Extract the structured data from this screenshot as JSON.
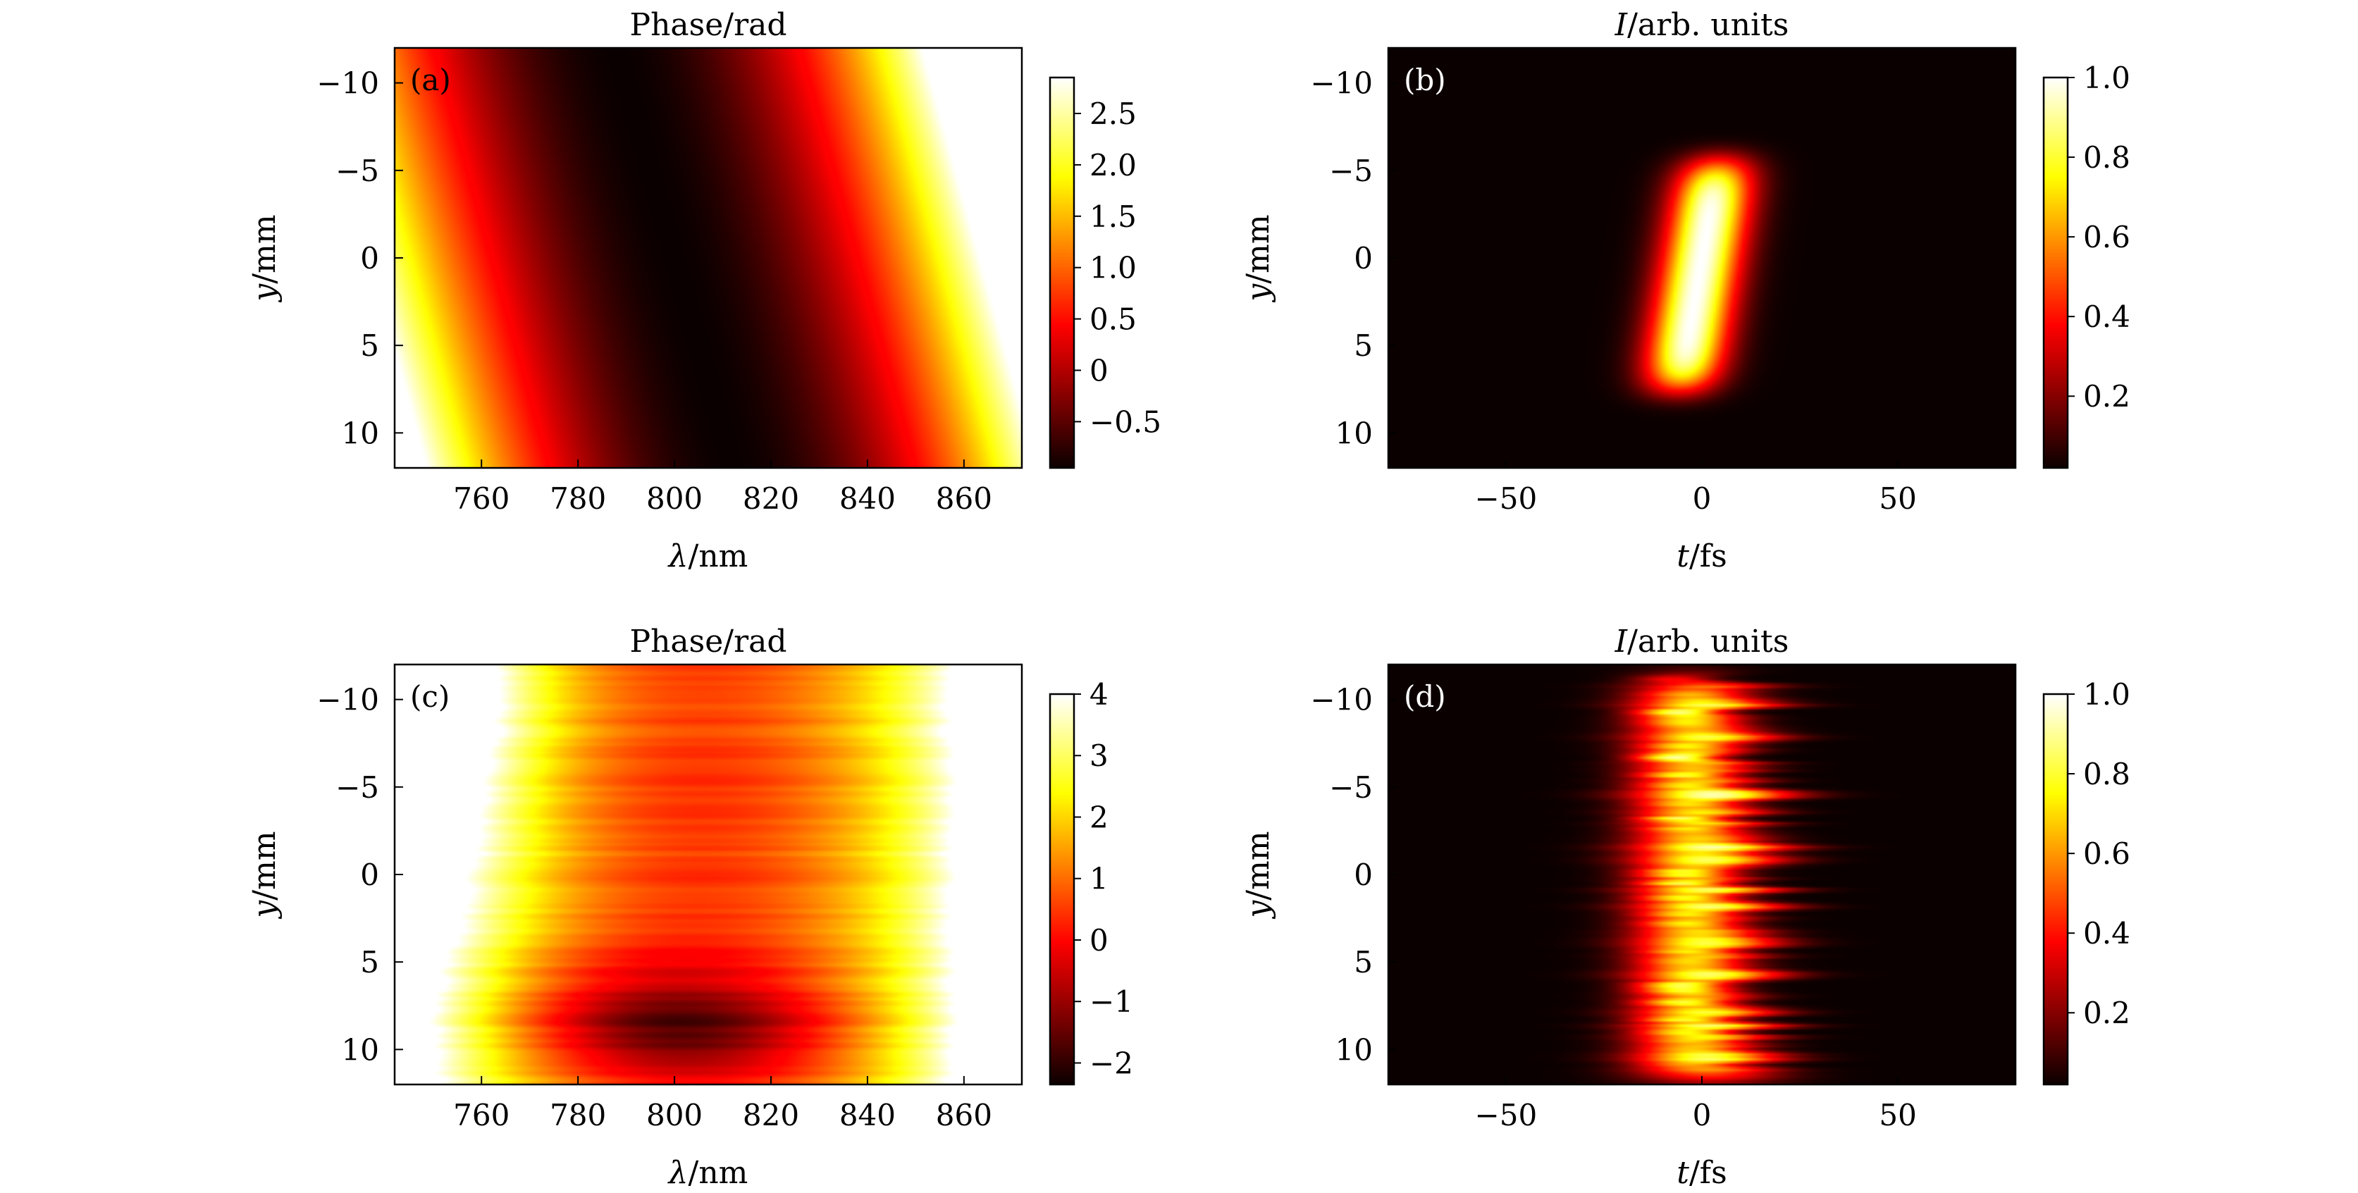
{
  "chart_data": [
    {
      "type": "heatmap",
      "panel_label": "(a)",
      "title": "Phase/rad",
      "xlabel": {
        "symbol": "λ",
        "rest": "/nm"
      },
      "ylabel": {
        "symbol": "y",
        "rest": "/mm"
      },
      "xlim": [
        742,
        872
      ],
      "ylim": [
        12,
        -12
      ],
      "xticks": [
        760,
        780,
        800,
        820,
        840,
        860
      ],
      "xtick_labels": [
        "760",
        "780",
        "800",
        "820",
        "840",
        "860"
      ],
      "yticks": [
        -10,
        -5,
        0,
        5,
        10
      ],
      "ytick_labels": [
        "−10",
        "−5",
        "0",
        "5",
        "10"
      ],
      "colormap": "hot",
      "colorbar": {
        "range": [
          -0.95,
          2.85
        ],
        "ticks": [
          -0.5,
          0,
          0.5,
          1.0,
          1.5,
          2.0,
          2.5
        ],
        "tick_labels": [
          "−0.5",
          "0",
          "0.5",
          "1.0",
          "1.5",
          "2.0",
          "2.5"
        ]
      },
      "field": {
        "kind": "parabolic_phase_tilted",
        "center_x": 800,
        "center_slope_per_mm": 1.0,
        "curvature": 0.00095,
        "min_value": -0.95,
        "noise": 0
      }
    },
    {
      "type": "heatmap",
      "panel_label": "(b)",
      "title": {
        "symbol": "I",
        "rest": "/arb. units"
      },
      "xlabel": {
        "symbol": "t",
        "rest": "/fs"
      },
      "ylabel": {
        "symbol": "y",
        "rest": "/mm"
      },
      "xlim": [
        -80,
        80
      ],
      "ylim": [
        12,
        -12
      ],
      "xticks": [
        -50,
        0,
        50
      ],
      "xtick_labels": [
        "−50",
        "0",
        "50"
      ],
      "yticks": [
        -10,
        -5,
        0,
        5,
        10
      ],
      "ytick_labels": [
        "−10",
        "−5",
        "0",
        "5",
        "10"
      ],
      "colormap": "hot",
      "colorbar": {
        "range": [
          0.02,
          1.0
        ],
        "ticks": [
          0.2,
          0.4,
          0.6,
          0.8,
          1.0
        ],
        "tick_labels": [
          "0.2",
          "0.4",
          "0.6",
          "0.8",
          "1.0"
        ]
      },
      "field": {
        "kind": "tilted_pulse",
        "center_t": 0,
        "tilt_fs_per_mm": 0.75,
        "width_fs": 10,
        "y_center": 1,
        "y_halfwidth": 6.6,
        "noise": 0
      }
    },
    {
      "type": "heatmap",
      "panel_label": "(c)",
      "title": "Phase/rad",
      "xlabel": {
        "symbol": "λ",
        "rest": "/nm"
      },
      "ylabel": {
        "symbol": "y",
        "rest": "/mm"
      },
      "xlim": [
        742,
        872
      ],
      "ylim": [
        12,
        -12
      ],
      "xticks": [
        760,
        780,
        800,
        820,
        840,
        860
      ],
      "xtick_labels": [
        "760",
        "780",
        "800",
        "820",
        "840",
        "860"
      ],
      "yticks": [
        -10,
        -5,
        0,
        5,
        10
      ],
      "ytick_labels": [
        "−10",
        "−5",
        "0",
        "5",
        "10"
      ],
      "colormap": "hot",
      "colorbar": {
        "range": [
          -2.35,
          4.0
        ],
        "ticks": [
          -2,
          -1,
          0,
          1,
          2,
          3,
          4
        ],
        "tick_labels": [
          "−2",
          "−1",
          "0",
          "1",
          "2",
          "3",
          "4"
        ]
      },
      "field": {
        "kind": "measured_phase",
        "noise": 1
      }
    },
    {
      "type": "heatmap",
      "panel_label": "(d)",
      "title": {
        "symbol": "I",
        "rest": "/arb. units"
      },
      "xlabel": {
        "symbol": "t",
        "rest": "/fs"
      },
      "ylabel": {
        "symbol": "y",
        "rest": "/mm"
      },
      "xlim": [
        -80,
        80
      ],
      "ylim": [
        12,
        -12
      ],
      "xticks": [
        -50,
        0,
        50
      ],
      "xtick_labels": [
        "−50",
        "0",
        "50"
      ],
      "yticks": [
        -10,
        -5,
        0,
        5,
        10
      ],
      "ytick_labels": [
        "−10",
        "−5",
        "0",
        "5",
        "10"
      ],
      "colormap": "hot",
      "colorbar": {
        "range": [
          0.02,
          1.0
        ],
        "ticks": [
          0.2,
          0.4,
          0.6,
          0.8,
          1.0
        ],
        "tick_labels": [
          "0.2",
          "0.4",
          "0.6",
          "0.8",
          "1.0"
        ]
      },
      "field": {
        "kind": "measured_pulse",
        "center_t": -2,
        "width_fs": 15,
        "y_min": -10,
        "y_max": 10.5,
        "noise": 1
      }
    }
  ]
}
